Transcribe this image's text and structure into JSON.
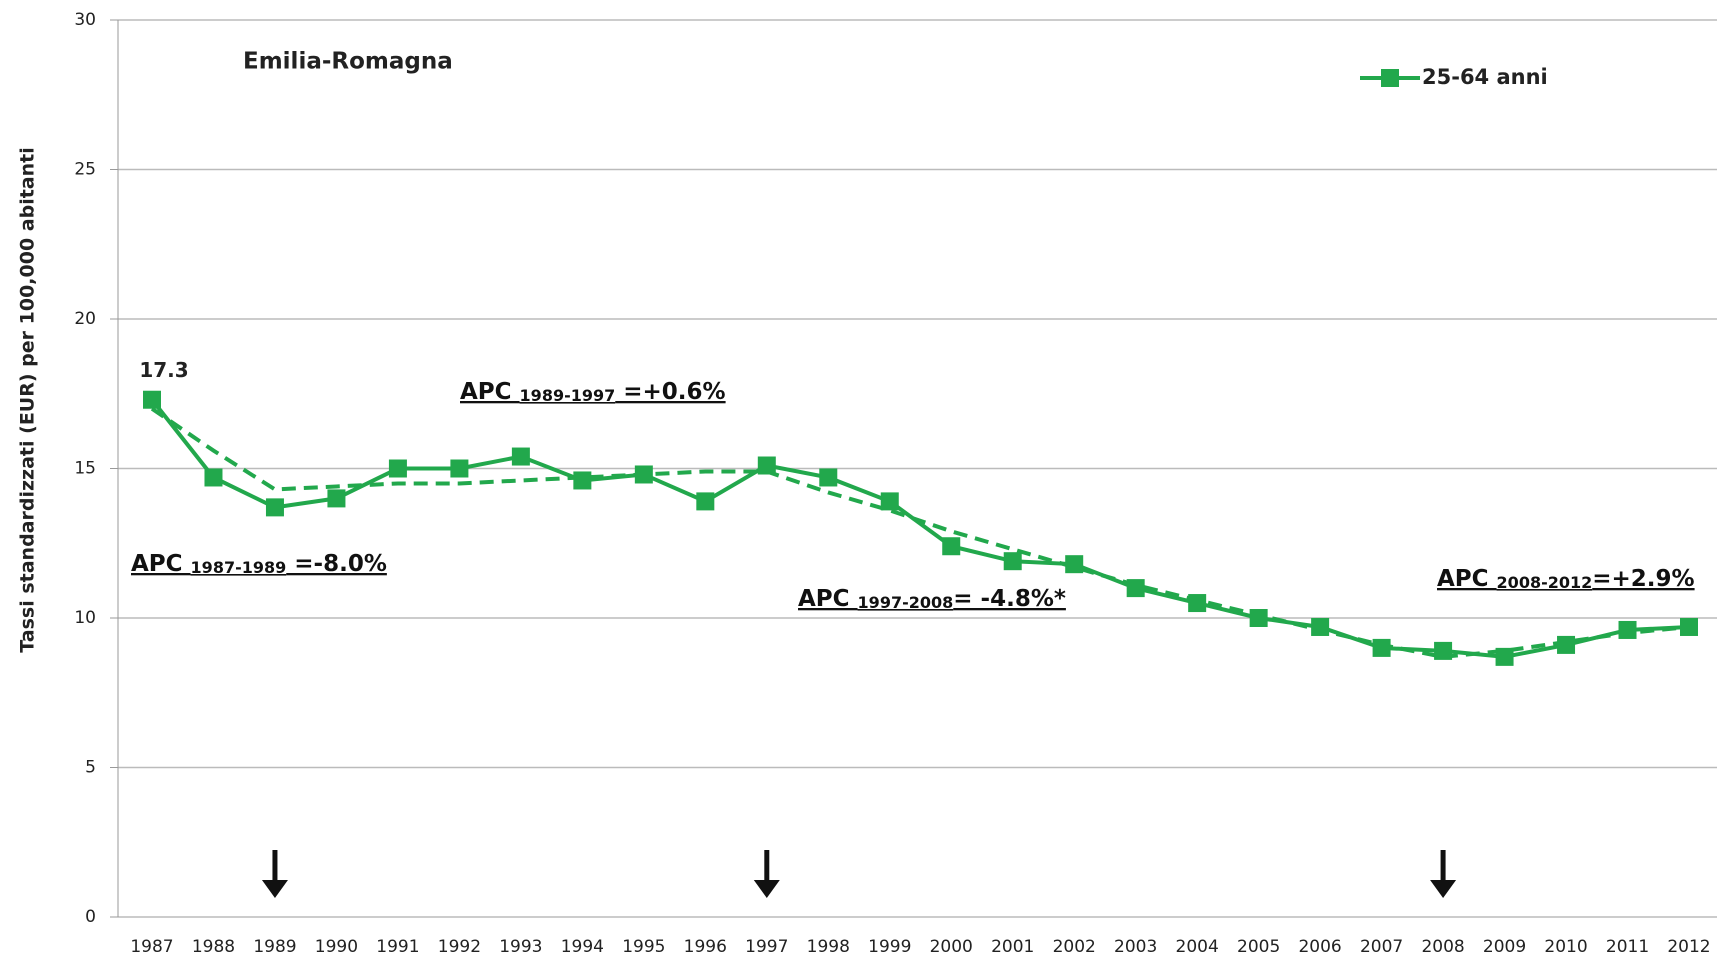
{
  "chart_data": {
    "type": "line",
    "title": "Emilia-Romagna",
    "y_label": "Tassi standardizzati  (EUR) per 100,000 abitanti",
    "categories": [
      "1987",
      "1988",
      "1989",
      "1990",
      "1991",
      "1992",
      "1993",
      "1994",
      "1995",
      "1996",
      "1997",
      "1998",
      "1999",
      "2000",
      "2001",
      "2002",
      "2003",
      "2004",
      "2005",
      "2006",
      "2007",
      "2008",
      "2009",
      "2010",
      "2011",
      "2012"
    ],
    "series": [
      {
        "name": "25-64 anni",
        "color": "#22a84c",
        "values": [
          17.3,
          14.7,
          13.7,
          14.0,
          15.0,
          15.0,
          15.4,
          14.6,
          14.8,
          13.9,
          15.1,
          14.7,
          13.9,
          12.4,
          11.9,
          11.8,
          11.0,
          10.5,
          10.0,
          9.7,
          9.0,
          8.9,
          8.7,
          9.1,
          9.6,
          9.7
        ],
        "value_labels": [
          "17.3",
          null,
          null,
          null,
          null,
          null,
          null,
          null,
          null,
          null,
          null,
          null,
          null,
          null,
          null,
          null,
          null,
          null,
          null,
          null,
          null,
          null,
          null,
          null,
          null,
          null
        ]
      }
    ],
    "trend": {
      "color": "#22a84c",
      "dashed": true,
      "values": [
        17.0,
        15.6,
        14.3,
        14.4,
        14.5,
        14.5,
        14.6,
        14.7,
        14.8,
        14.9,
        14.9,
        14.2,
        13.6,
        12.9,
        12.3,
        11.7,
        11.1,
        10.6,
        10.1,
        9.6,
        9.1,
        8.7,
        8.9,
        9.2,
        9.5,
        9.7
      ]
    },
    "joinpoints": [
      "1989",
      "1997",
      "2008"
    ],
    "annotations": [
      {
        "prefix": "APC ",
        "sub": "1987-1989",
        "suffix": " =-8.0%"
      },
      {
        "prefix": "APC ",
        "sub": "1989-1997",
        "suffix": " =+0.6%"
      },
      {
        "prefix": "APC ",
        "sub": "1997-2008",
        "suffix": "= -4.8%*"
      },
      {
        "prefix": "APC ",
        "sub": "2008-2012",
        "suffix": "=+2.9%"
      }
    ],
    "ylim": [
      0,
      30
    ],
    "yticks": [
      0,
      5,
      10,
      15,
      20,
      25,
      30
    ],
    "grid": true,
    "legend": "top-right"
  }
}
